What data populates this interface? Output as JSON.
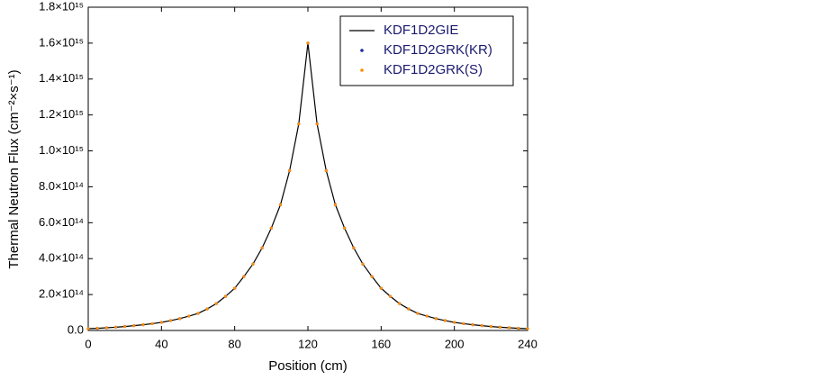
{
  "chart_data": {
    "type": "line",
    "x_label": "Position (cm)",
    "y_label": "Thermal Neutron Flux (cm⁻²×s⁻¹)",
    "x": [
      0,
      5,
      10,
      15,
      20,
      25,
      30,
      35,
      40,
      45,
      50,
      55,
      60,
      65,
      70,
      75,
      80,
      85,
      90,
      95,
      100,
      105,
      110,
      115,
      120,
      125,
      130,
      135,
      140,
      145,
      150,
      155,
      160,
      165,
      170,
      175,
      180,
      185,
      190,
      195,
      200,
      205,
      210,
      215,
      220,
      225,
      230,
      235,
      240
    ],
    "series": [
      {
        "name": "KDF1D2GIE",
        "color": "#000000",
        "style": "line",
        "values": [
          10000000000000.0,
          12000000000000.0,
          15000000000000.0,
          18000000000000.0,
          22000000000000.0,
          27000000000000.0,
          32000000000000.0,
          38000000000000.0,
          45000000000000.0,
          55000000000000.0,
          66000000000000.0,
          80000000000000.0,
          95000000000000.0,
          120000000000000.0,
          150000000000000.0,
          190000000000000.0,
          235000000000000.0,
          300000000000000.0,
          370000000000000.0,
          460000000000000.0,
          570000000000000.0,
          700000000000000.0,
          890000000000000.0,
          1150000000000000.0,
          1600000000000000.0,
          1150000000000000.0,
          890000000000000.0,
          700000000000000.0,
          570000000000000.0,
          460000000000000.0,
          370000000000000.0,
          300000000000000.0,
          235000000000000.0,
          190000000000000.0,
          150000000000000.0,
          120000000000000.0,
          95000000000000.0,
          80000000000000.0,
          66000000000000.0,
          55000000000000.0,
          45000000000000.0,
          38000000000000.0,
          32000000000000.0,
          27000000000000.0,
          22000000000000.0,
          18000000000000.0,
          15000000000000.0,
          12000000000000.0,
          10000000000000.0
        ]
      },
      {
        "name": "KDF1D2GRK(KR)",
        "color": "#1f2a9c",
        "style": "dots",
        "values": [
          10000000000000.0,
          12000000000000.0,
          15000000000000.0,
          18000000000000.0,
          22000000000000.0,
          27000000000000.0,
          32000000000000.0,
          38000000000000.0,
          45000000000000.0,
          55000000000000.0,
          66000000000000.0,
          80000000000000.0,
          95000000000000.0,
          120000000000000.0,
          150000000000000.0,
          190000000000000.0,
          235000000000000.0,
          300000000000000.0,
          370000000000000.0,
          460000000000000.0,
          570000000000000.0,
          700000000000000.0,
          890000000000000.0,
          1150000000000000.0,
          1600000000000000.0,
          1150000000000000.0,
          890000000000000.0,
          700000000000000.0,
          570000000000000.0,
          460000000000000.0,
          370000000000000.0,
          300000000000000.0,
          235000000000000.0,
          190000000000000.0,
          150000000000000.0,
          120000000000000.0,
          95000000000000.0,
          80000000000000.0,
          66000000000000.0,
          55000000000000.0,
          45000000000000.0,
          38000000000000.0,
          32000000000000.0,
          27000000000000.0,
          22000000000000.0,
          18000000000000.0,
          15000000000000.0,
          12000000000000.0,
          10000000000000.0
        ]
      },
      {
        "name": "KDF1D2GRK(S)",
        "color": "#ff8c00",
        "style": "dots",
        "values": [
          10000000000000.0,
          12000000000000.0,
          15000000000000.0,
          18000000000000.0,
          22000000000000.0,
          27000000000000.0,
          32000000000000.0,
          38000000000000.0,
          45000000000000.0,
          55000000000000.0,
          66000000000000.0,
          80000000000000.0,
          95000000000000.0,
          120000000000000.0,
          150000000000000.0,
          190000000000000.0,
          235000000000000.0,
          300000000000000.0,
          370000000000000.0,
          460000000000000.0,
          570000000000000.0,
          700000000000000.0,
          890000000000000.0,
          1150000000000000.0,
          1600000000000000.0,
          1150000000000000.0,
          890000000000000.0,
          700000000000000.0,
          570000000000000.0,
          460000000000000.0,
          370000000000000.0,
          300000000000000.0,
          235000000000000.0,
          190000000000000.0,
          150000000000000.0,
          120000000000000.0,
          95000000000000.0,
          80000000000000.0,
          66000000000000.0,
          55000000000000.0,
          45000000000000.0,
          38000000000000.0,
          32000000000000.0,
          27000000000000.0,
          22000000000000.0,
          18000000000000.0,
          15000000000000.0,
          12000000000000.0,
          10000000000000.0
        ]
      }
    ],
    "xlim": [
      0,
      240
    ],
    "xticks": [
      0,
      40,
      80,
      120,
      160,
      200,
      240
    ],
    "ylim": [
      0,
      1800000000000000.0
    ],
    "yticks": [
      {
        "value": 0,
        "label": "0.0"
      },
      {
        "value": 200000000000000.0,
        "label": "2.0×10¹⁴"
      },
      {
        "value": 400000000000000.0,
        "label": "4.0×10¹⁴"
      },
      {
        "value": 600000000000000.0,
        "label": "6.0×10¹⁴"
      },
      {
        "value": 800000000000000.0,
        "label": "8.0×10¹⁴"
      },
      {
        "value": 1000000000000000.0,
        "label": "1.0×10¹⁵"
      },
      {
        "value": 1200000000000000.0,
        "label": "1.2×10¹⁵"
      },
      {
        "value": 1400000000000000.0,
        "label": "1.4×10¹⁵"
      },
      {
        "value": 1600000000000000.0,
        "label": "1.6×10¹⁵"
      },
      {
        "value": 1800000000000000.0,
        "label": "1.8×10¹⁵"
      }
    ],
    "legend": "upper right",
    "grid": false
  }
}
